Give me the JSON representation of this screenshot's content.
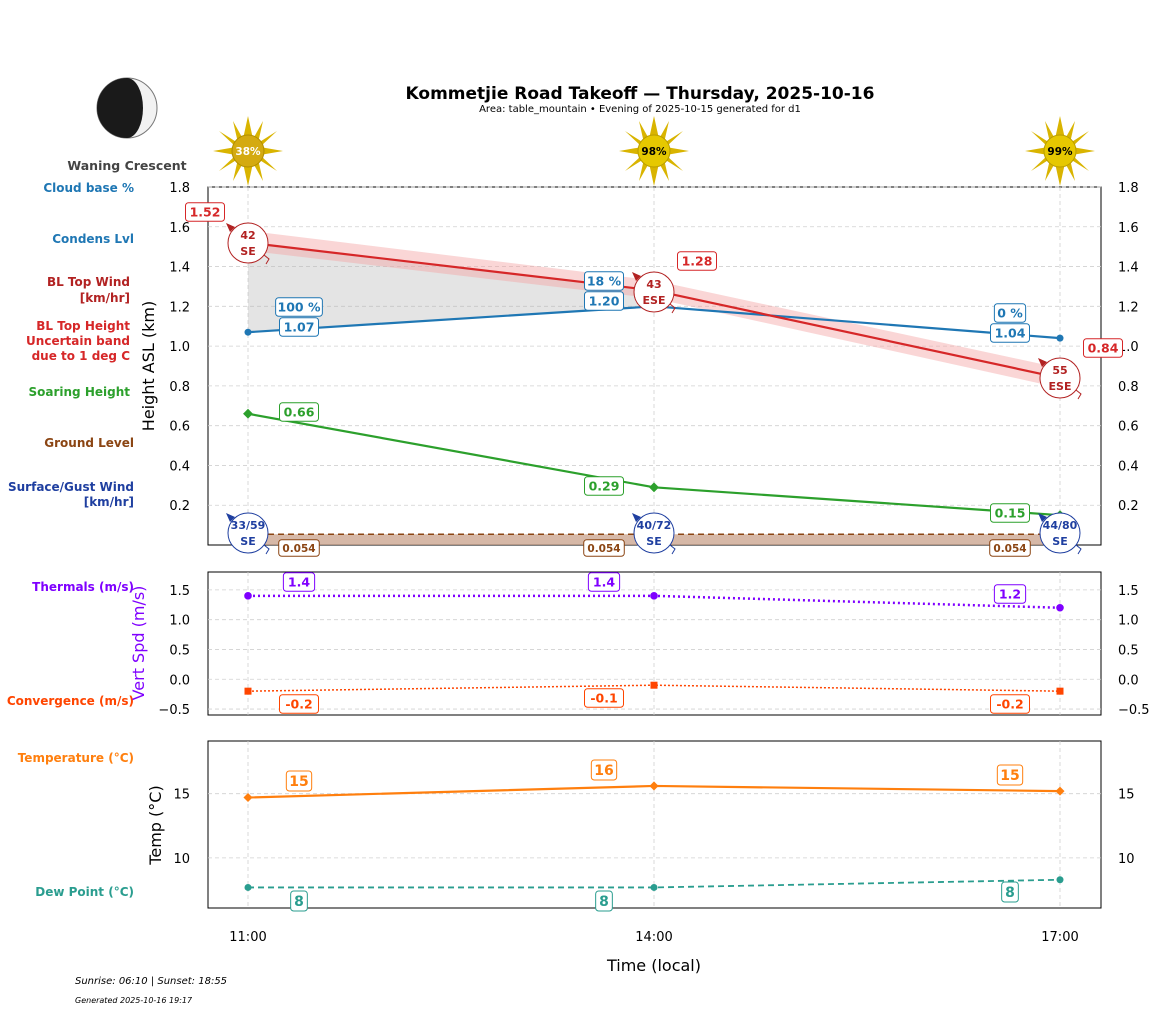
{
  "header": {
    "title": "Kommetjie Road Takeoff — Thursday, 2025-10-16",
    "subtitle": "Area: table_mountain • Evening of 2025-10-15 generated for d1"
  },
  "moon": {
    "phase": "Waning Crescent"
  },
  "sun_badges": [
    "38%",
    "98%",
    "99%"
  ],
  "side_labels": {
    "cloud_base": "Cloud base %",
    "condens": "Condens Lvl",
    "bl_wind_1": "BL Top Wind",
    "bl_wind_2": "[km/hr]",
    "bl_height_1": "BL Top Height",
    "bl_height_2": "Uncertain band",
    "bl_height_3": "due to 1 deg C",
    "soaring": "Soaring Height",
    "ground": "Ground Level",
    "surface_1": "Surface/Gust Wind",
    "surface_2": "[km/hr]",
    "thermals": "Thermals (m/s)",
    "convergence": "Convergence (m/s)",
    "temperature": "Temperature (°C)",
    "dew_point": "Dew Point (°C)"
  },
  "footer": {
    "sun": "Sunrise: 06:10 | Sunset: 18:55",
    "generated": "Generated 2025-10-16 19:17"
  },
  "colors": {
    "bl_top": "#d62728",
    "condens": "#1f77b4",
    "soaring": "#2ca02c",
    "ground": "#8b4513",
    "surface_wind": "#1f3fa0",
    "thermals": "#7f00ff",
    "convergence": "#ff4500",
    "temperature": "#ff7f0e",
    "dew_point": "#2a9d8f"
  },
  "chart_data": [
    {
      "type": "line",
      "ylabel": "Height ASL (km)",
      "ylim": [
        0,
        1.8
      ],
      "x": [
        "11:00",
        "14:00",
        "17:00"
      ],
      "yticks": [
        "0.2",
        "0.4",
        "0.6",
        "0.8",
        "1.0",
        "1.2",
        "1.4",
        "1.6",
        "1.8"
      ],
      "series": {
        "bl_top": {
          "values": [
            1.52,
            1.28,
            0.84
          ],
          "labels": [
            "1.52",
            "1.28",
            "0.84"
          ],
          "band_low": [
            1.48,
            1.24,
            0.79
          ],
          "band_high": [
            1.58,
            1.33,
            0.89
          ]
        },
        "condens": {
          "values": [
            1.07,
            1.2,
            1.04
          ],
          "labels": [
            "1.07",
            "1.20",
            "1.04"
          ]
        },
        "cloud_base_pct": [
          "100 %",
          "18 %",
          "0 %"
        ],
        "soaring": {
          "values": [
            0.66,
            0.29,
            0.15
          ],
          "labels": [
            "0.66",
            "0.29",
            "0.15"
          ]
        },
        "ground": {
          "values": [
            0.054,
            0.054,
            0.054
          ],
          "labels": [
            "0.054",
            "0.054",
            "0.054"
          ]
        },
        "bl_wind": [
          {
            "speed": "42",
            "dir": "SE"
          },
          {
            "speed": "43",
            "dir": "ESE"
          },
          {
            "speed": "55",
            "dir": "ESE"
          }
        ],
        "surface_wind": [
          {
            "speed": "33/59",
            "dir": "SE"
          },
          {
            "speed": "40/72",
            "dir": "SE"
          },
          {
            "speed": "44/80",
            "dir": "SE"
          }
        ]
      }
    },
    {
      "type": "line",
      "ylabel": "Vert Spd (m/s)",
      "ylim": [
        -0.6,
        1.8
      ],
      "yticks": [
        "−0.5",
        "0.0",
        "0.5",
        "1.0",
        "1.5"
      ],
      "series": {
        "thermals": {
          "values": [
            1.4,
            1.4,
            1.2
          ],
          "labels": [
            "1.4",
            "1.4",
            "1.2"
          ]
        },
        "convergence": {
          "values": [
            -0.2,
            -0.1,
            -0.2
          ],
          "labels": [
            "-0.2",
            "-0.1",
            "-0.2"
          ]
        }
      }
    },
    {
      "type": "line",
      "xlabel": "Time (local)",
      "ylabel": "Temp (°C)",
      "ylim": [
        6.1,
        19.1
      ],
      "yticks": [
        "10",
        "15"
      ],
      "series": {
        "temperature": {
          "values": [
            14.7,
            15.6,
            15.2
          ],
          "labels": [
            "15",
            "16",
            "15"
          ]
        },
        "dew_point": {
          "values": [
            7.7,
            7.7,
            8.3
          ],
          "labels": [
            "8",
            "8",
            "8"
          ]
        }
      }
    }
  ]
}
